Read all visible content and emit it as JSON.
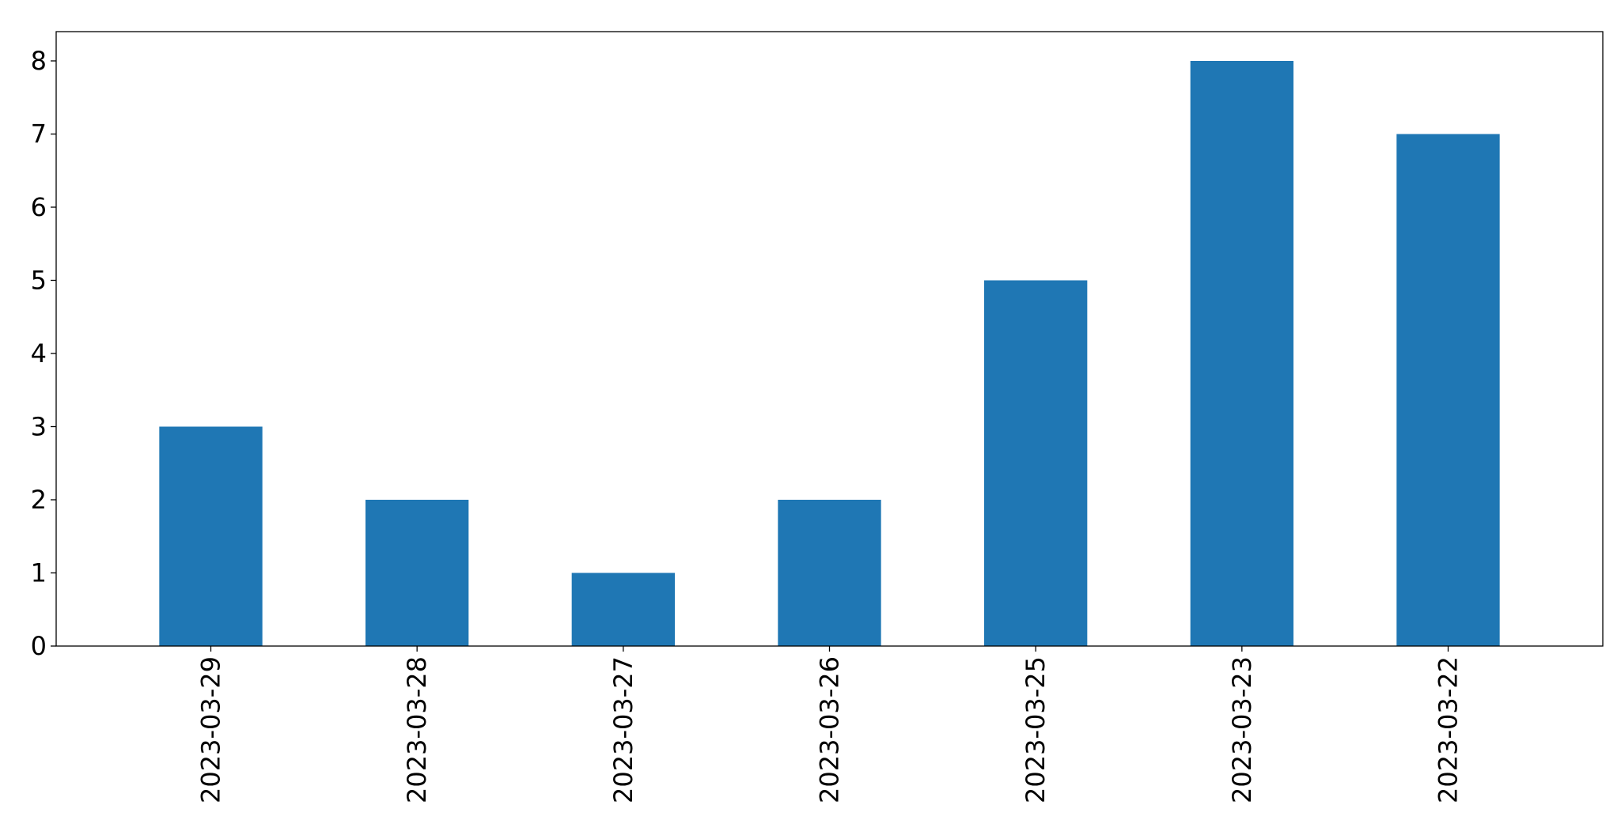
{
  "chart_data": {
    "type": "bar",
    "title": "",
    "xlabel": "",
    "ylabel": "",
    "categories": [
      "2023-03-29",
      "2023-03-28",
      "2023-03-27",
      "2023-03-26",
      "2023-03-25",
      "2023-03-23",
      "2023-03-22"
    ],
    "values": [
      3,
      2,
      1,
      2,
      5,
      8,
      7
    ],
    "ylim": [
      0,
      8.4
    ],
    "yticks": [
      0,
      1,
      2,
      3,
      4,
      5,
      6,
      7,
      8
    ],
    "bar_color": "#1f77b4",
    "grid": false,
    "legend": "none",
    "xtick_rotation": "vertical"
  }
}
